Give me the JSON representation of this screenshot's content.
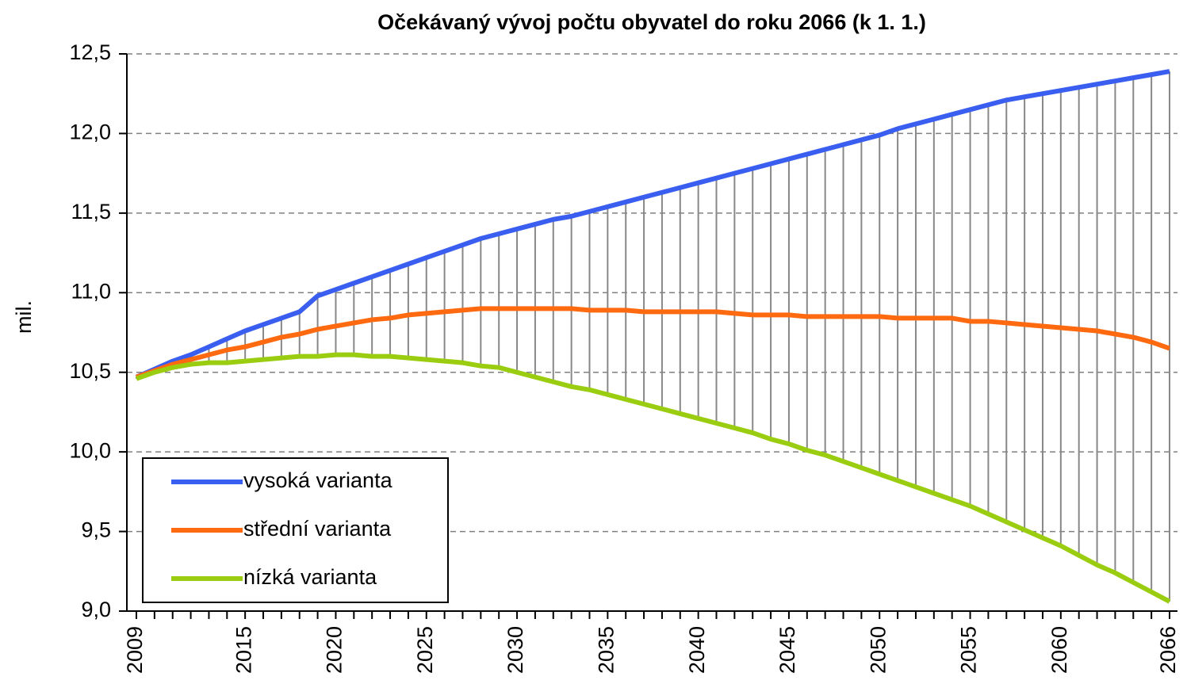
{
  "chart_data": {
    "type": "line",
    "title": "Očekávaný vývoj počtu obyvatel do roku 2066 (k 1. 1.)",
    "ylabel": "mil.",
    "categories": [
      "2009",
      null,
      null,
      null,
      null,
      null,
      "2015",
      null,
      null,
      null,
      null,
      "2020",
      null,
      null,
      null,
      null,
      "2025",
      null,
      null,
      null,
      null,
      "2030",
      null,
      null,
      null,
      null,
      "2035",
      null,
      null,
      null,
      null,
      "2040",
      null,
      null,
      null,
      null,
      "2045",
      null,
      null,
      null,
      null,
      "2050",
      null,
      null,
      null,
      null,
      "2055",
      null,
      null,
      null,
      null,
      "2060",
      null,
      null,
      null,
      null,
      null,
      "2066"
    ],
    "series": [
      {
        "name": "vysoká varianta",
        "color": "#3a5ef0",
        "values": [
          10.47,
          10.52,
          10.57,
          10.61,
          10.66,
          10.71,
          10.76,
          10.8,
          10.84,
          10.88,
          10.98,
          11.02,
          11.06,
          11.1,
          11.14,
          11.18,
          11.22,
          11.26,
          11.3,
          11.34,
          11.37,
          11.4,
          11.43,
          11.46,
          11.48,
          11.51,
          11.54,
          11.57,
          11.6,
          11.63,
          11.66,
          11.69,
          11.72,
          11.75,
          11.78,
          11.81,
          11.84,
          11.87,
          11.9,
          11.93,
          11.96,
          11.99,
          12.03,
          12.06,
          12.09,
          12.12,
          12.15,
          12.18,
          12.21,
          12.23,
          12.25,
          12.27,
          12.29,
          12.31,
          12.33,
          12.35,
          12.37,
          12.39
        ]
      },
      {
        "name": "střední varianta",
        "color": "#ff6a10",
        "values": [
          10.47,
          10.51,
          10.55,
          10.58,
          10.61,
          10.64,
          10.66,
          10.69,
          10.72,
          10.74,
          10.77,
          10.79,
          10.81,
          10.83,
          10.84,
          10.86,
          10.87,
          10.88,
          10.89,
          10.9,
          10.9,
          10.9,
          10.9,
          10.9,
          10.9,
          10.89,
          10.89,
          10.89,
          10.88,
          10.88,
          10.88,
          10.88,
          10.88,
          10.87,
          10.86,
          10.86,
          10.86,
          10.85,
          10.85,
          10.85,
          10.85,
          10.85,
          10.84,
          10.84,
          10.84,
          10.84,
          10.82,
          10.82,
          10.81,
          10.8,
          10.79,
          10.78,
          10.77,
          10.76,
          10.74,
          10.72,
          10.69,
          10.65
        ]
      },
      {
        "name": "nízká varianta",
        "color": "#9acd10",
        "values": [
          10.46,
          10.5,
          10.53,
          10.55,
          10.56,
          10.56,
          10.57,
          10.58,
          10.59,
          10.6,
          10.6,
          10.61,
          10.61,
          10.6,
          10.6,
          10.59,
          10.58,
          10.57,
          10.56,
          10.54,
          10.53,
          10.5,
          10.47,
          10.44,
          10.41,
          10.39,
          10.36,
          10.33,
          10.3,
          10.27,
          10.24,
          10.21,
          10.18,
          10.15,
          10.12,
          10.08,
          10.05,
          10.01,
          9.98,
          9.94,
          9.9,
          9.86,
          9.82,
          9.78,
          9.74,
          9.7,
          9.66,
          9.61,
          9.56,
          9.51,
          9.46,
          9.41,
          9.35,
          9.29,
          9.24,
          9.18,
          9.12,
          9.06
        ]
      }
    ],
    "ylim": [
      9.0,
      12.5
    ],
    "yticks": [
      {
        "value": 9.0,
        "label": "9,0"
      },
      {
        "value": 9.5,
        "label": "9,5"
      },
      {
        "value": 10.0,
        "label": "10,0"
      },
      {
        "value": 10.5,
        "label": "10,5"
      },
      {
        "value": 11.0,
        "label": "11,0"
      },
      {
        "value": 11.5,
        "label": "11,5"
      },
      {
        "value": 12.0,
        "label": "12,0"
      },
      {
        "value": 12.5,
        "label": "12,5"
      }
    ],
    "grid": true,
    "high_low_lines": true,
    "legend": "lower left"
  }
}
